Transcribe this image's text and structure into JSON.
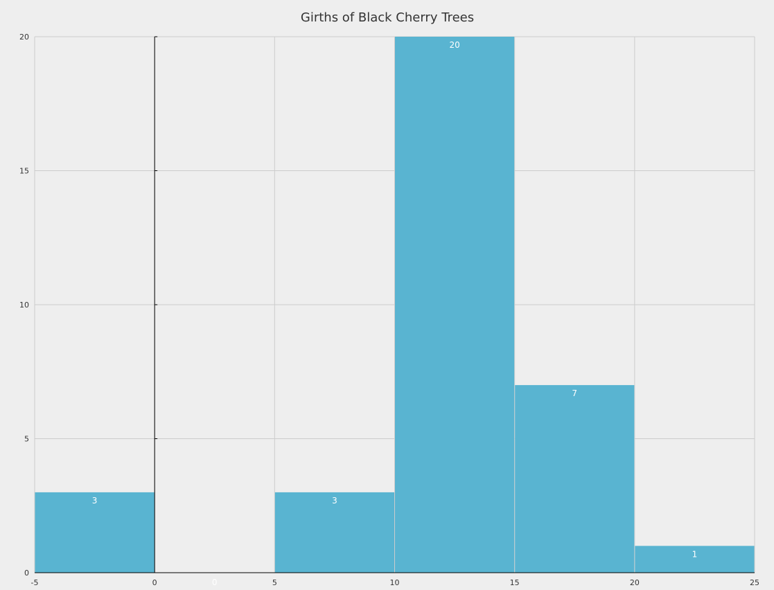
{
  "chart_data": {
    "type": "bar",
    "title": "Girths of Black Cherry Trees",
    "xlabel": "",
    "ylabel": "",
    "bins": [
      {
        "x0": -5,
        "x1": 0,
        "count": 3
      },
      {
        "x0": 0,
        "x1": 5,
        "count": 0
      },
      {
        "x0": 5,
        "x1": 10,
        "count": 3
      },
      {
        "x0": 10,
        "x1": 15,
        "count": 20
      },
      {
        "x0": 15,
        "x1": 20,
        "count": 7
      },
      {
        "x0": 20,
        "x1": 25,
        "count": 1
      }
    ],
    "xlim": [
      -5,
      25
    ],
    "ylim": [
      0,
      20
    ],
    "xticks": [
      -5,
      0,
      5,
      10,
      15,
      20,
      25
    ],
    "yticks": [
      0,
      5,
      10,
      15,
      20
    ],
    "grid": true,
    "colors": {
      "bar": "#59b4d1",
      "bar_label": "#ffffff",
      "grid": "#cccccc",
      "axis": "#000000",
      "background": "#eeeeee"
    }
  }
}
